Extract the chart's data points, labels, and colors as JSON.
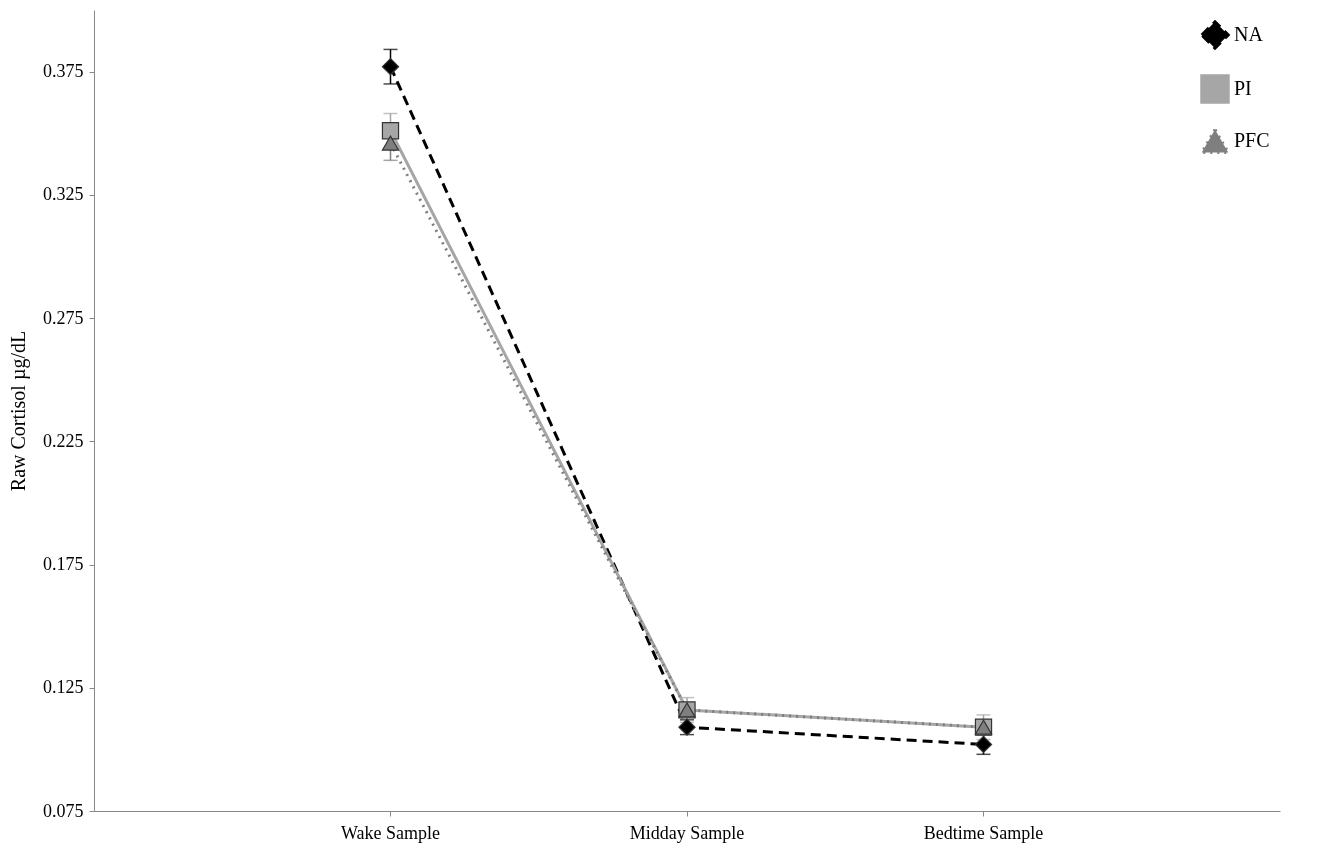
{
  "chart_data": {
    "type": "line",
    "ylabel": "Raw Cortisol µg/dL",
    "categories": [
      "Wake Sample",
      "Midday Sample",
      "Bedtime Sample"
    ],
    "series": [
      {
        "name": "NA",
        "color": "#000000",
        "marker": "diamond",
        "line_style": "dashed",
        "values": [
          0.377,
          0.109,
          0.102
        ],
        "errors": [
          0.007,
          0.003,
          0.004
        ]
      },
      {
        "name": "PI",
        "color": "#a6a6a6",
        "marker": "square",
        "line_style": "solid",
        "values": [
          0.351,
          0.116,
          0.109
        ],
        "errors": [
          0.007,
          0.005,
          0.005
        ]
      },
      {
        "name": "PFC",
        "color": "#7f7f7f",
        "marker": "triangle",
        "line_style": "dotted",
        "values": [
          0.346,
          0.116,
          0.109
        ],
        "errors": [
          0.007,
          null,
          null
        ]
      }
    ],
    "ylim": [
      0.075,
      0.4
    ],
    "yticks": [
      0.075,
      0.125,
      0.175,
      0.225,
      0.275,
      0.325,
      0.375
    ],
    "grid": false,
    "legend": "top right"
  }
}
